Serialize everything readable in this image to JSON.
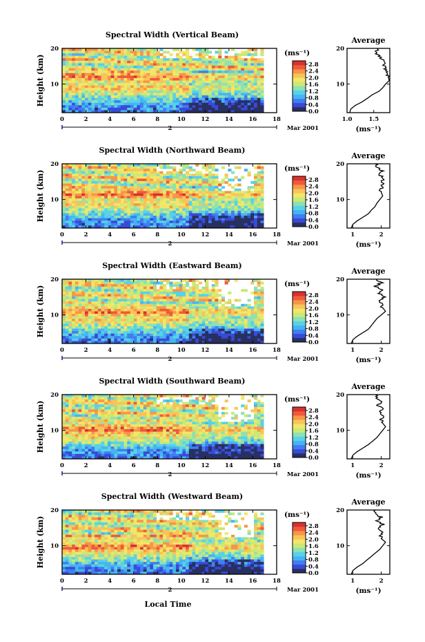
{
  "figure": {
    "xlabel": "Local Time",
    "date_label": "Mar 2001",
    "date_mark": "2",
    "unit_label_cb": "(ms⁻¹)",
    "unit_label_avg": "(ms⁻¹)",
    "avg_title": "Average",
    "colormap": [
      "#283060",
      "#3a4ad8",
      "#3f7ff0",
      "#47b4f2",
      "#57d2e9",
      "#8fe0b2",
      "#c9e978",
      "#f3e668",
      "#f8c45a",
      "#f79548",
      "#ee5a3a",
      "#d8312f"
    ]
  },
  "chart_data": [
    {
      "type": "heatmap",
      "title": "Spectral Width (Vertical Beam)",
      "ylabel": "Height (km)",
      "xlabel": "Local Time",
      "x_ticks": [
        "0",
        "2",
        "4",
        "6",
        "8",
        "10",
        "12",
        "14",
        "16",
        "18"
      ],
      "y_ticks": [
        "10",
        "20"
      ],
      "xlim": [
        0,
        18
      ],
      "ylim": [
        2,
        20
      ],
      "colorbar_ticks": [
        "2.8",
        "2.4",
        "2.0",
        "1.6",
        "1.2",
        "0.8",
        "0.4",
        "0.0"
      ],
      "colorbar_range": [
        0.0,
        3.0
      ],
      "average_profile": {
        "xlim": [
          1.0,
          1.8
        ],
        "x_ticks": [
          "1.0",
          "1.5"
        ],
        "y_ticks": [
          "10",
          "20"
        ],
        "height": [
          2,
          3,
          4,
          5,
          6,
          7,
          8,
          9,
          10,
          11,
          12,
          13,
          14,
          15,
          16,
          17,
          18,
          19,
          20
        ],
        "value": [
          1.05,
          1.07,
          1.15,
          1.28,
          1.38,
          1.47,
          1.6,
          1.67,
          1.72,
          1.79,
          1.77,
          1.74,
          1.71,
          1.69,
          1.72,
          1.66,
          1.58,
          1.53,
          1.58
        ]
      }
    },
    {
      "type": "heatmap",
      "title": "Spectral Width (Northward Beam)",
      "ylabel": "Height (km)",
      "xlabel": "Local Time",
      "x_ticks": [
        "0",
        "2",
        "4",
        "6",
        "8",
        "10",
        "12",
        "14",
        "16",
        "18"
      ],
      "y_ticks": [
        "10",
        "20"
      ],
      "xlim": [
        0,
        18
      ],
      "ylim": [
        2,
        20
      ],
      "colorbar_ticks": [
        "2.8",
        "2.4",
        "2.0",
        "1.6",
        "1.2",
        "0.8",
        "0.4",
        "0.0"
      ],
      "colorbar_range": [
        0.0,
        3.0
      ],
      "average_profile": {
        "xlim": [
          0.8,
          2.3
        ],
        "x_ticks": [
          "1",
          "2"
        ],
        "y_ticks": [
          "10",
          "20"
        ],
        "height": [
          2,
          3,
          4,
          5,
          6,
          7,
          8,
          9,
          10,
          11,
          12,
          13,
          14,
          15,
          16,
          17,
          18,
          19,
          20
        ],
        "value": [
          0.95,
          1.0,
          1.15,
          1.35,
          1.55,
          1.65,
          1.78,
          1.85,
          1.95,
          2.05,
          2.0,
          1.98,
          2.05,
          2.0,
          2.1,
          1.95,
          2.05,
          1.85,
          1.78
        ]
      }
    },
    {
      "type": "heatmap",
      "title": "Spectral Width (Eastward Beam)",
      "ylabel": "Height (km)",
      "xlabel": "Local Time",
      "x_ticks": [
        "0",
        "2",
        "4",
        "6",
        "8",
        "10",
        "12",
        "14",
        "16",
        "18"
      ],
      "y_ticks": [
        "10",
        "20"
      ],
      "xlim": [
        0,
        18
      ],
      "ylim": [
        2,
        20
      ],
      "colorbar_ticks": [
        "2.8",
        "2.4",
        "2.0",
        "1.6",
        "1.2",
        "0.8",
        "0.4",
        "0.0"
      ],
      "colorbar_range": [
        0.0,
        3.0
      ],
      "average_profile": {
        "xlim": [
          0.8,
          2.3
        ],
        "x_ticks": [
          "1",
          "2"
        ],
        "y_ticks": [
          "10",
          "20"
        ],
        "height": [
          2,
          3,
          4,
          5,
          6,
          7,
          8,
          9,
          10,
          11,
          12,
          13,
          14,
          15,
          16,
          17,
          18,
          19,
          20
        ],
        "value": [
          0.95,
          1.0,
          1.15,
          1.35,
          1.55,
          1.65,
          1.75,
          1.85,
          2.0,
          2.15,
          2.05,
          2.0,
          1.9,
          2.1,
          1.95,
          2.05,
          1.8,
          2.0,
          1.85
        ]
      }
    },
    {
      "type": "heatmap",
      "title": "Spectral Width (Southward Beam)",
      "ylabel": "Height (km)",
      "xlabel": "Local Time",
      "x_ticks": [
        "0",
        "2",
        "4",
        "6",
        "8",
        "10",
        "12",
        "14",
        "16",
        "18"
      ],
      "y_ticks": [
        "10",
        "20"
      ],
      "xlim": [
        0,
        18
      ],
      "ylim": [
        2,
        20
      ],
      "colorbar_ticks": [
        "2.8",
        "2.4",
        "2.0",
        "1.6",
        "1.2",
        "0.8",
        "0.4",
        "0.0"
      ],
      "colorbar_range": [
        0.0,
        3.0
      ],
      "average_profile": {
        "xlim": [
          0.8,
          2.3
        ],
        "x_ticks": [
          "1",
          "2"
        ],
        "y_ticks": [
          "10",
          "20"
        ],
        "height": [
          2,
          3,
          4,
          5,
          6,
          7,
          8,
          9,
          10,
          11,
          12,
          13,
          14,
          15,
          16,
          17,
          18,
          19,
          20
        ],
        "value": [
          0.95,
          1.0,
          1.15,
          1.35,
          1.55,
          1.7,
          1.85,
          1.95,
          2.05,
          2.15,
          2.05,
          2.0,
          2.1,
          1.95,
          2.05,
          1.9,
          2.05,
          1.85,
          1.8
        ]
      }
    },
    {
      "type": "heatmap",
      "title": "Spectral Width (Westward Beam)",
      "ylabel": "Height (km)",
      "xlabel": "Local Time",
      "x_ticks": [
        "0",
        "2",
        "4",
        "6",
        "8",
        "10",
        "12",
        "14",
        "16",
        "18"
      ],
      "y_ticks": [
        "10",
        "20"
      ],
      "xlim": [
        0,
        18
      ],
      "ylim": [
        2,
        20
      ],
      "colorbar_ticks": [
        "2.8",
        "2.4",
        "2.0",
        "1.6",
        "1.2",
        "0.8",
        "0.4",
        "0.0"
      ],
      "colorbar_range": [
        0.0,
        3.0
      ],
      "average_profile": {
        "xlim": [
          0.8,
          2.3
        ],
        "x_ticks": [
          "1",
          "2"
        ],
        "y_ticks": [
          "10",
          "20"
        ],
        "height": [
          2,
          3,
          4,
          5,
          6,
          7,
          8,
          9,
          10,
          11,
          12,
          13,
          14,
          15,
          16,
          17,
          18,
          19,
          20
        ],
        "value": [
          0.95,
          1.0,
          1.15,
          1.35,
          1.5,
          1.65,
          1.8,
          1.95,
          2.05,
          2.15,
          2.0,
          1.95,
          2.05,
          1.9,
          2.05,
          1.85,
          2.0,
          1.75,
          1.8
        ]
      }
    }
  ]
}
